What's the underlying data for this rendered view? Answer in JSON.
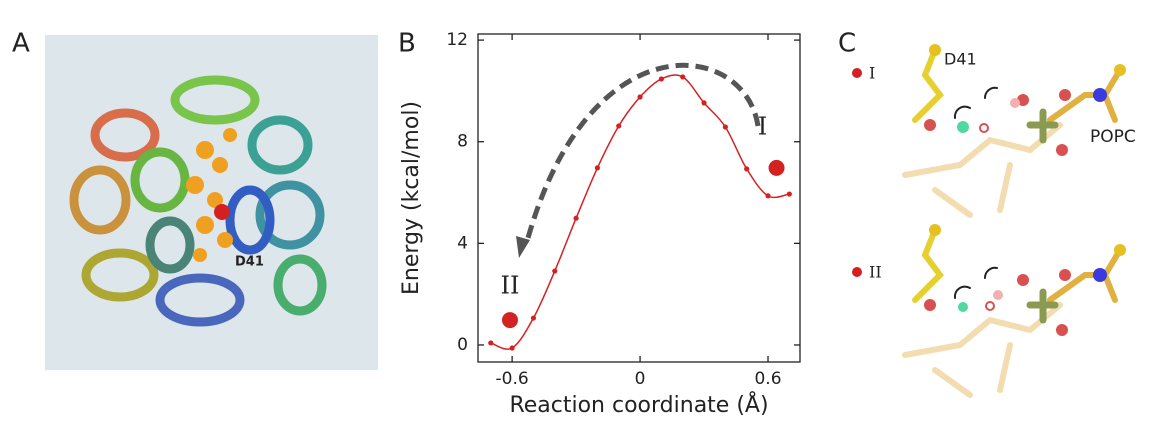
{
  "chart_data": {
    "type": "line",
    "panel_label": "B",
    "x_label": "Reaction coordinate (Å)",
    "y_label": "Energy (kcal/mol)",
    "x": [
      -0.7,
      -0.6,
      -0.5,
      -0.4,
      -0.3,
      -0.2,
      -0.1,
      0,
      0.1,
      0.2,
      0.3,
      0.4,
      0.5,
      0.6,
      0.7
    ],
    "series": [
      {
        "color": "#d42222",
        "values": [
          0.08,
          -0.12,
          1.06,
          2.91,
          4.99,
          6.97,
          8.62,
          9.76,
          10.47,
          10.55,
          9.53,
          8.58,
          6.93,
          5.87,
          5.94
        ]
      }
    ],
    "xlim": [
      -0.76,
      0.75
    ],
    "ylim": [
      -0.67,
      12.24
    ],
    "xticks": [
      -0.6,
      0,
      0.6
    ],
    "yticks": [
      0,
      4,
      8,
      12
    ],
    "states": [
      {
        "label": "II",
        "x": -0.61,
        "y": 0.98
      },
      {
        "label": "I",
        "x": 0.64,
        "y": 6.97
      }
    ]
  },
  "panel_a": {
    "label": "A",
    "residue": "D41"
  },
  "panel_c": {
    "label": "C",
    "residue": "D41",
    "lipid": "POPC",
    "states": [
      "I",
      "II"
    ]
  }
}
